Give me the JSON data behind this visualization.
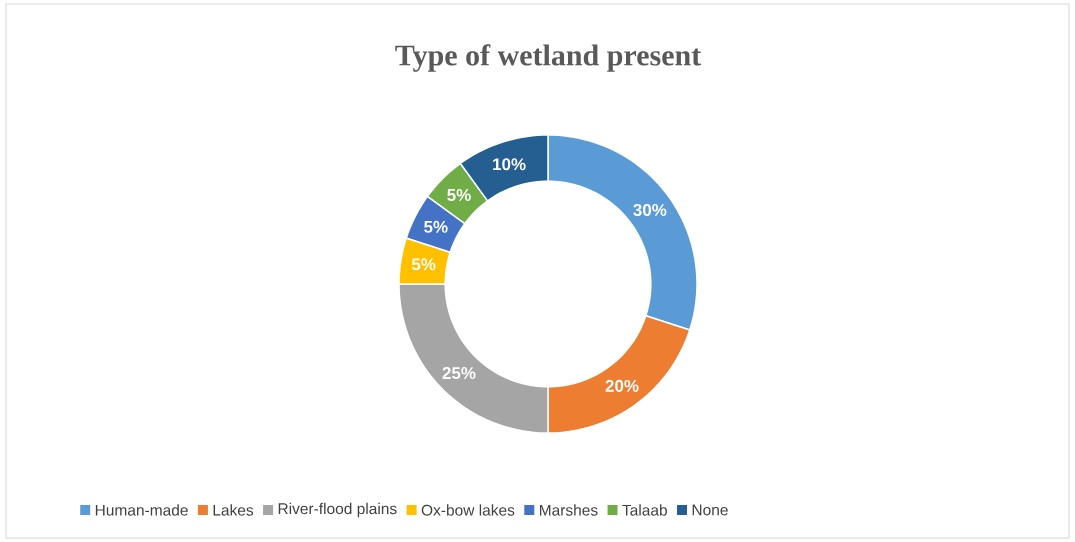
{
  "chart_data": {
    "type": "donut",
    "title": "Type of wetland present",
    "categories": [
      "Human-made",
      "Lakes",
      "River-flood plains",
      "Ox-bow lakes",
      "Marshes",
      "Talaab",
      "None"
    ],
    "values": [
      30,
      20,
      25,
      5,
      5,
      5,
      10
    ],
    "value_labels": [
      "30%",
      "20%",
      "25%",
      "5%",
      "5%",
      "5%",
      "10%"
    ],
    "colors": [
      "#5b9bd5",
      "#ed7d31",
      "#a5a5a5",
      "#ffc000",
      "#4472c4",
      "#70ad47",
      "#255e91"
    ],
    "legend": "bottom"
  }
}
